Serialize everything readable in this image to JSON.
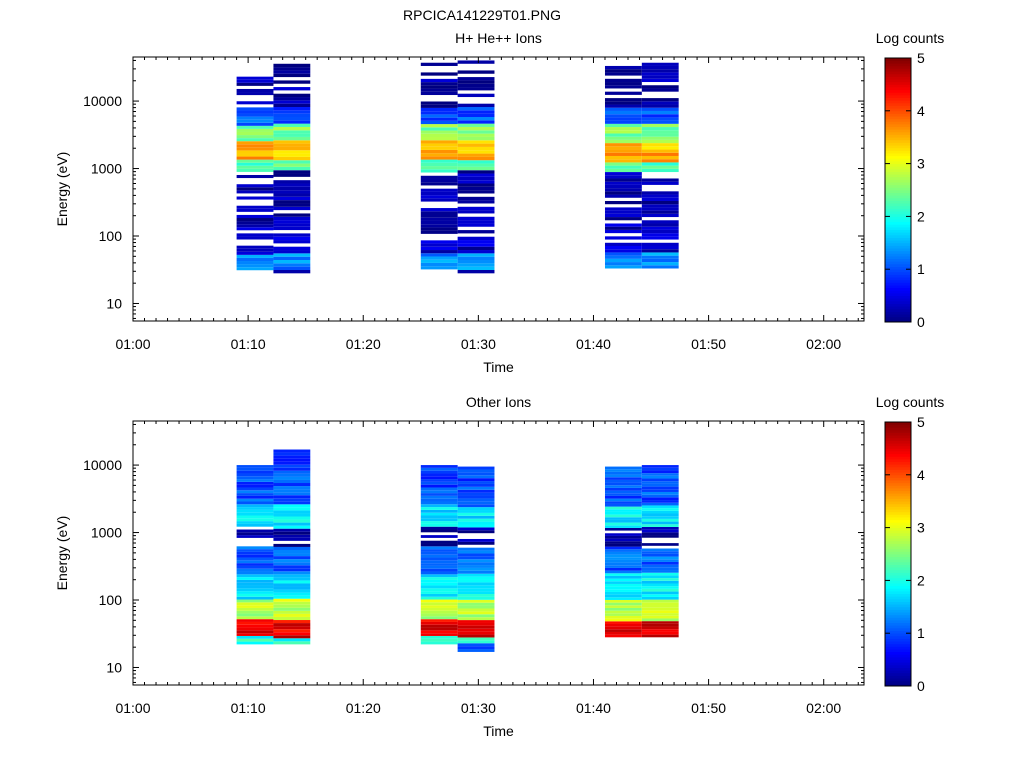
{
  "figure_title": "RPCICA141229T01.PNG",
  "colormap": [
    "#00007f",
    "#0000ff",
    "#007fff",
    "#00ffff",
    "#7fff7f",
    "#ffff00",
    "#ff7f00",
    "#ff0000",
    "#7f0000"
  ],
  "chart_data": [
    {
      "type": "heatmap",
      "title": "H+ He++ Ions",
      "xlabel": "Time",
      "ylabel": "Energy (eV)",
      "colorbar_label": "Log counts",
      "colorbar_range": [
        0,
        5
      ],
      "colorbar_ticks": [
        "0",
        "1",
        "2",
        "3",
        "4",
        "5"
      ],
      "x_ticks": [
        "01:00",
        "01:10",
        "01:20",
        "01:30",
        "01:40",
        "01:50",
        "02:00"
      ],
      "y_ticks": [
        "10",
        "100",
        "1000",
        "10000"
      ],
      "y_scale": "log",
      "xlim_minutes": [
        60,
        123.5
      ],
      "ylim": [
        5.5,
        45000
      ],
      "columns": [
        {
          "t_start": 69.0,
          "t_end": 72.2,
          "energy_min": 28,
          "energy_max": 23000
        },
        {
          "t_start": 72.2,
          "t_end": 75.4,
          "energy_min": 28,
          "energy_max": 40000
        },
        {
          "t_start": 85.0,
          "t_end": 88.2,
          "energy_min": 32,
          "energy_max": 37000
        },
        {
          "t_start": 88.2,
          "t_end": 91.4,
          "energy_min": 28,
          "energy_max": 40000
        },
        {
          "t_start": 101.0,
          "t_end": 104.2,
          "energy_min": 33,
          "energy_max": 37000
        },
        {
          "t_start": 104.2,
          "t_end": 107.4,
          "energy_min": 33,
          "energy_max": 37000
        }
      ],
      "bands": [
        {
          "e_min": 30,
          "e_max": 55,
          "log_counts": 1.3
        },
        {
          "e_min": 55,
          "e_max": 150,
          "log_counts": 0.3
        },
        {
          "e_min": 150,
          "e_max": 900,
          "log_counts": 0.15
        },
        {
          "e_min": 900,
          "e_max": 1300,
          "log_counts": 2.3
        },
        {
          "e_min": 1300,
          "e_max": 2500,
          "log_counts": 3.5
        },
        {
          "e_min": 2500,
          "e_max": 4500,
          "log_counts": 2.5
        },
        {
          "e_min": 4500,
          "e_max": 8000,
          "log_counts": 1.0
        },
        {
          "e_min": 8000,
          "e_max": 40000,
          "log_counts": 0.15
        }
      ]
    },
    {
      "type": "heatmap",
      "title": "Other Ions",
      "xlabel": "Time",
      "ylabel": "Energy (eV)",
      "colorbar_label": "Log counts",
      "colorbar_range": [
        0,
        5
      ],
      "colorbar_ticks": [
        "0",
        "1",
        "2",
        "3",
        "4",
        "5"
      ],
      "x_ticks": [
        "01:00",
        "01:10",
        "01:20",
        "01:30",
        "01:40",
        "01:50",
        "02:00"
      ],
      "y_ticks": [
        "10",
        "100",
        "1000",
        "10000"
      ],
      "y_scale": "log",
      "xlim_minutes": [
        60,
        123.5
      ],
      "ylim": [
        5.5,
        45000
      ],
      "columns": [
        {
          "t_start": 69.0,
          "t_end": 72.2,
          "energy_min": 22,
          "energy_max": 10000
        },
        {
          "t_start": 72.2,
          "t_end": 75.4,
          "energy_min": 22,
          "energy_max": 17000
        },
        {
          "t_start": 85.0,
          "t_end": 88.2,
          "energy_min": 22,
          "energy_max": 10000
        },
        {
          "t_start": 88.2,
          "t_end": 91.4,
          "energy_min": 17,
          "energy_max": 9500
        },
        {
          "t_start": 101.0,
          "t_end": 104.2,
          "energy_min": 28,
          "energy_max": 9500
        },
        {
          "t_start": 104.2,
          "t_end": 107.4,
          "energy_min": 28,
          "energy_max": 10000
        }
      ],
      "bands": [
        {
          "e_min": 22,
          "e_max": 28,
          "log_counts": 2.0
        },
        {
          "e_min": 28,
          "e_max": 50,
          "log_counts": 4.5
        },
        {
          "e_min": 50,
          "e_max": 100,
          "log_counts": 2.8
        },
        {
          "e_min": 100,
          "e_max": 250,
          "log_counts": 1.8
        },
        {
          "e_min": 250,
          "e_max": 600,
          "log_counts": 1.1
        },
        {
          "e_min": 600,
          "e_max": 1200,
          "log_counts": 0.1
        },
        {
          "e_min": 1200,
          "e_max": 2500,
          "log_counts": 1.8
        },
        {
          "e_min": 2500,
          "e_max": 10000,
          "log_counts": 1.0
        }
      ]
    }
  ]
}
